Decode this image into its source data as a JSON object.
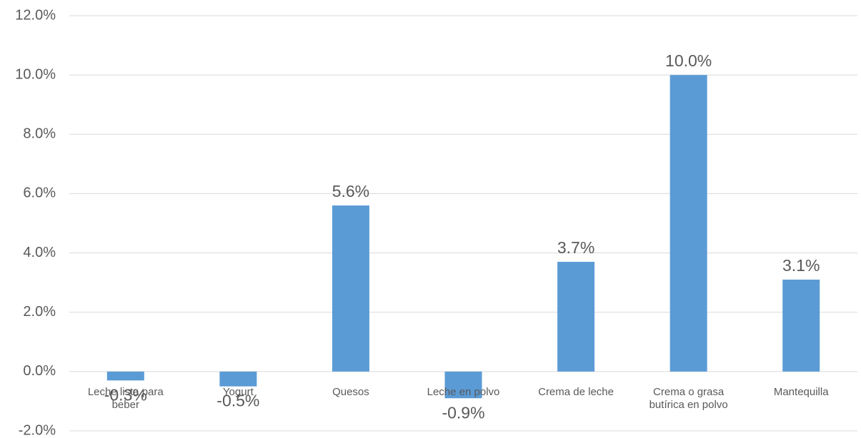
{
  "chart_data": {
    "type": "bar",
    "categories": [
      "Leche lista para beber",
      "Yogurt",
      "Quesos",
      "Leche en polvo",
      "Crema de leche",
      "Crema o grasa butírica en polvo",
      "Mantequilla"
    ],
    "values": [
      -0.3,
      -0.5,
      5.6,
      -0.9,
      3.7,
      10.0,
      3.1
    ],
    "value_labels": [
      "-0.3%",
      "-0.5%",
      "5.6%",
      "-0.9%",
      "3.7%",
      "10.0%",
      "3.1%"
    ],
    "color": "#5b9bd5",
    "ylim": [
      -2,
      12
    ],
    "yticks": [
      {
        "value": -2,
        "label": "-2.0%"
      },
      {
        "value": 0,
        "label": "0.0%"
      },
      {
        "value": 2,
        "label": "2.0%"
      },
      {
        "value": 4,
        "label": "4.0%"
      },
      {
        "value": 6,
        "label": "6.0%"
      },
      {
        "value": 8,
        "label": "8.0%"
      },
      {
        "value": 10,
        "label": "10.0%"
      },
      {
        "value": 12,
        "label": "12.0%"
      }
    ],
    "grid": true
  }
}
